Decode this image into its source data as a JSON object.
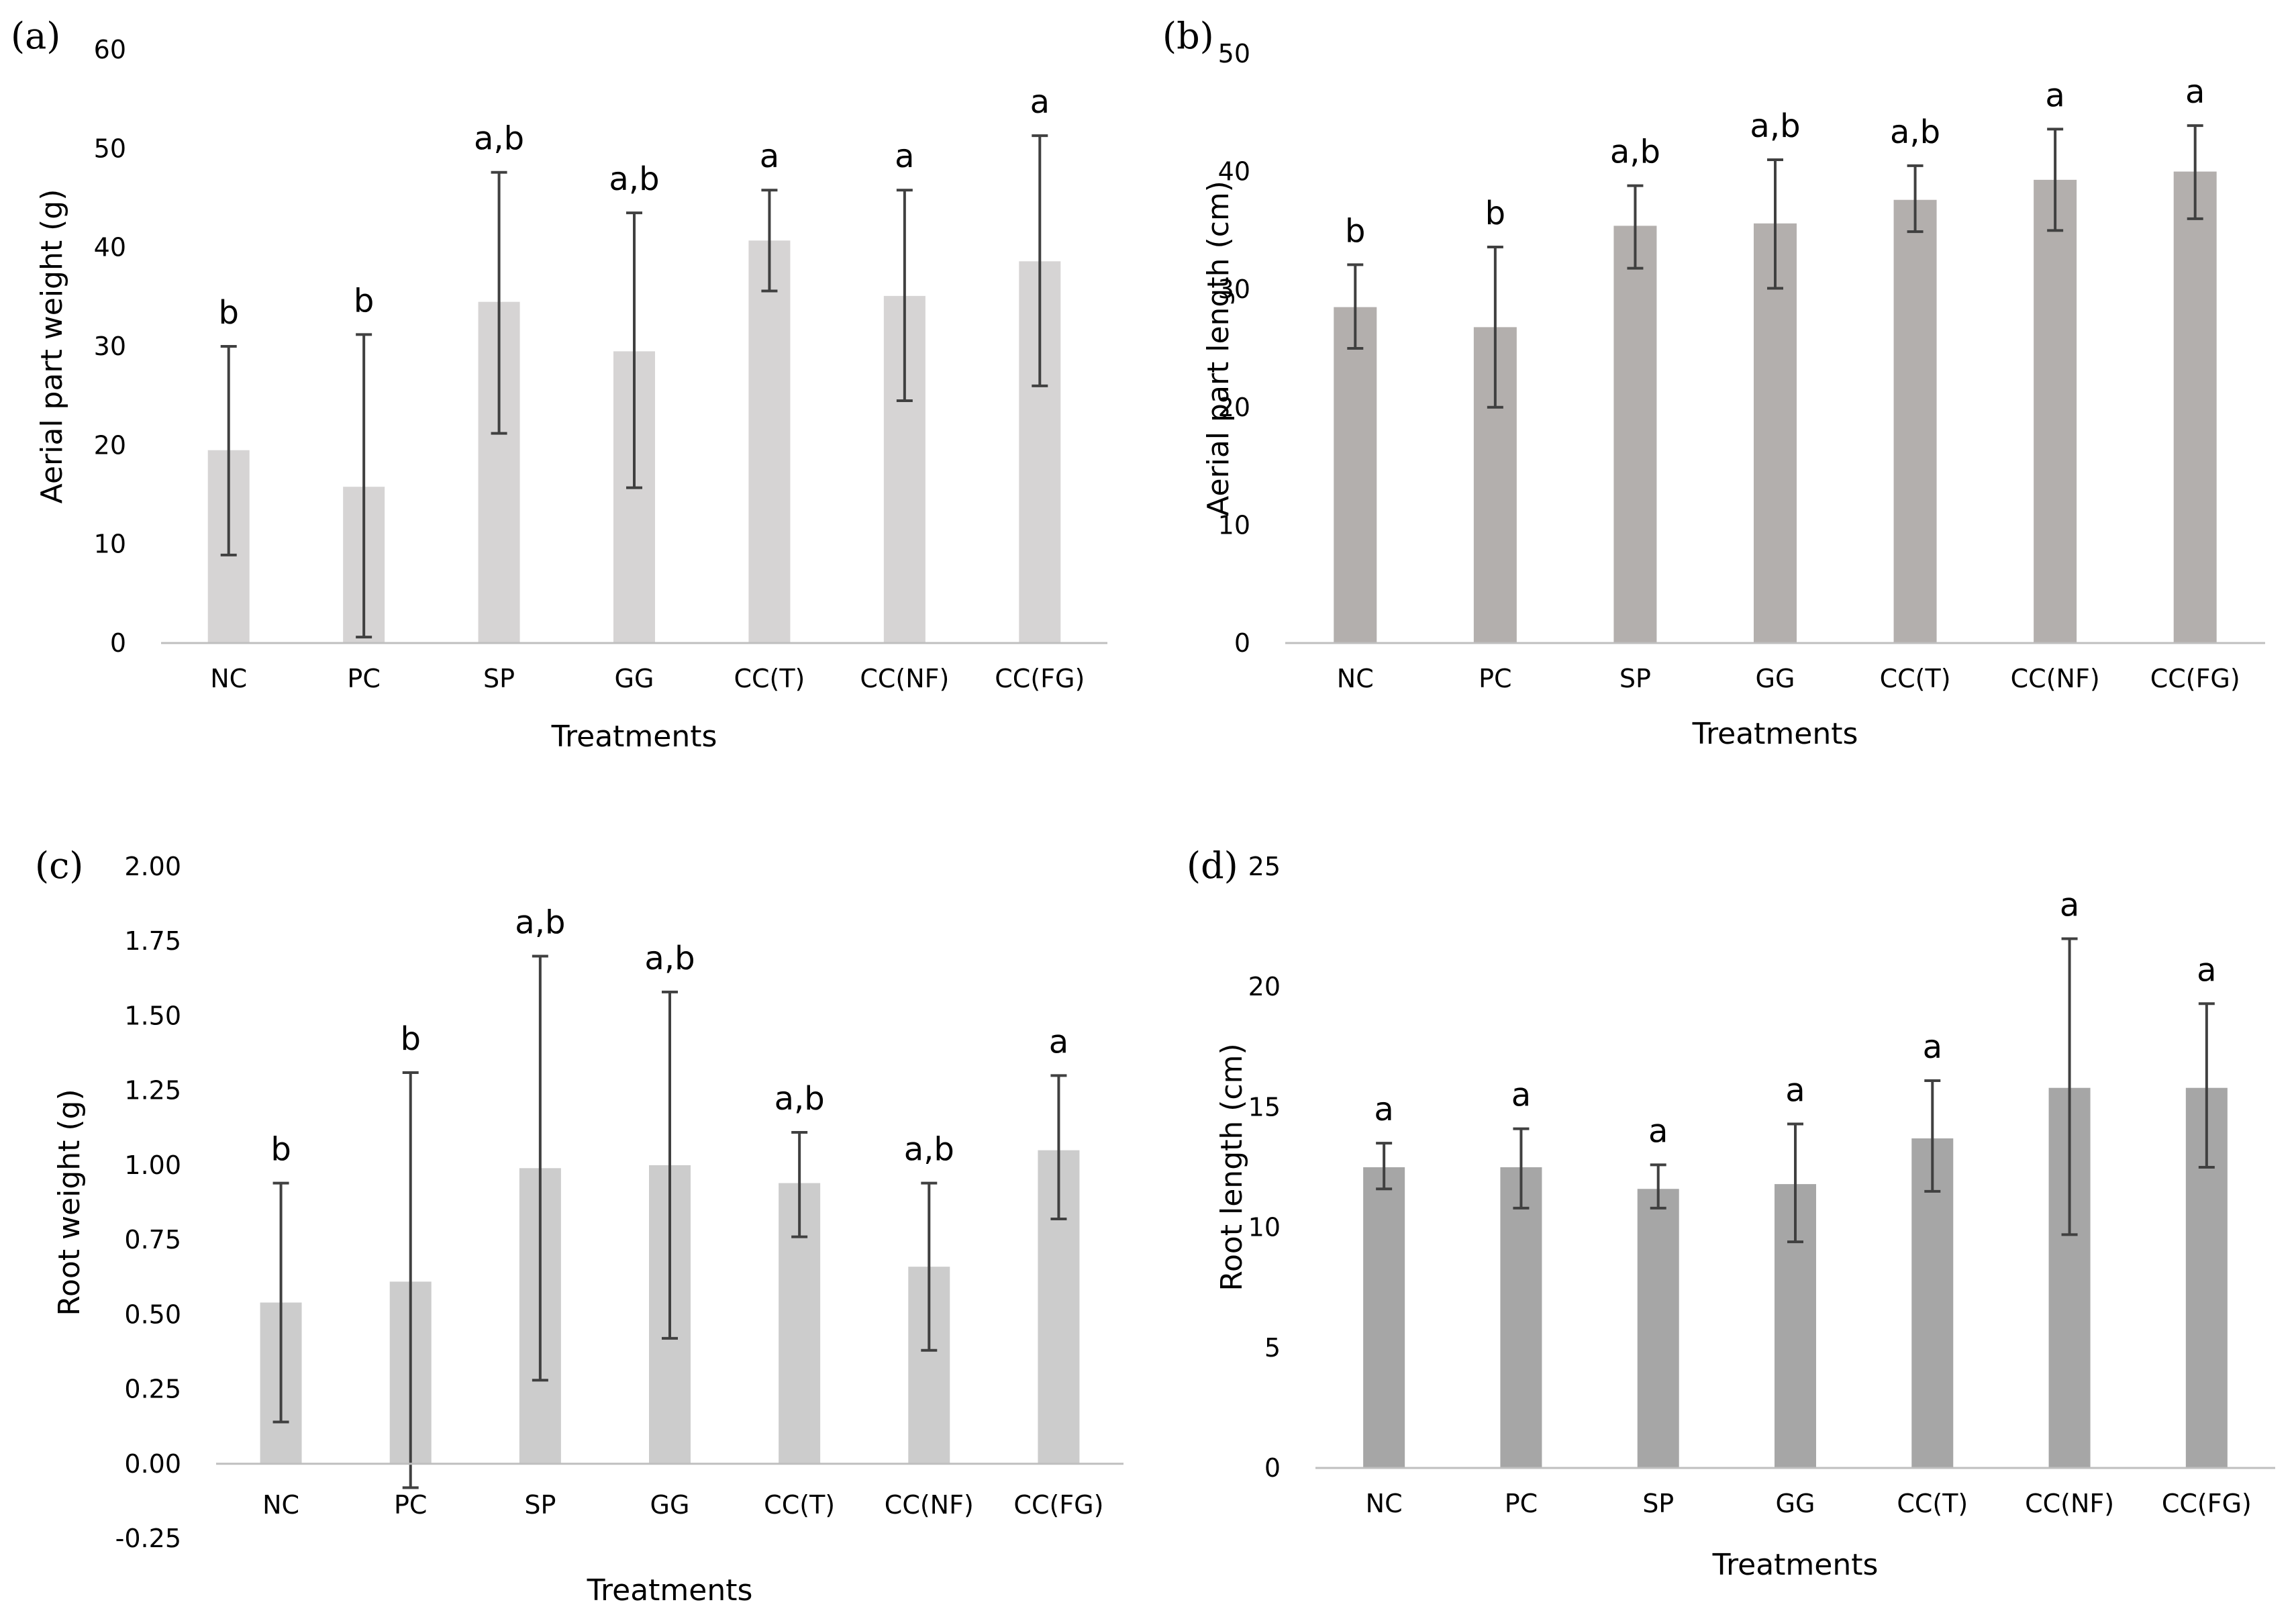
{
  "chart_data": [
    {
      "panel": "(a)",
      "type": "bar",
      "xlabel": "Treatments",
      "ylabel": "Aerial part weight (g)",
      "ylim": [
        0,
        60
      ],
      "yticks": [
        0,
        10,
        20,
        30,
        40,
        50,
        60
      ],
      "ytick_labels": [
        "0",
        "10",
        "20",
        "30",
        "40",
        "50",
        "60"
      ],
      "categories": [
        "NC",
        "PC",
        "SP",
        "GG",
        "CC(T)",
        "CC(NF)",
        "CC(FG)"
      ],
      "values": [
        19.5,
        15.8,
        34.5,
        29.5,
        40.7,
        35.1,
        38.6
      ],
      "error_low": [
        8.9,
        0.6,
        21.2,
        15.7,
        35.6,
        24.5,
        26.0
      ],
      "error_high": [
        30.0,
        31.2,
        47.6,
        43.5,
        45.8,
        45.8,
        51.3
      ],
      "significance": [
        "b",
        "b",
        "a,b",
        "a,b",
        "a",
        "a",
        "a"
      ],
      "bar_color": "#d6d4d4",
      "grid": false
    },
    {
      "panel": "(b)",
      "type": "bar",
      "xlabel": "Treatments",
      "ylabel": "Aerial part length (cm)",
      "ylim": [
        0,
        50
      ],
      "yticks": [
        0,
        10,
        20,
        30,
        40,
        50
      ],
      "ytick_labels": [
        "0",
        "10",
        "20",
        "30",
        "40",
        "50"
      ],
      "categories": [
        "NC",
        "PC",
        "SP",
        "GG",
        "CC(T)",
        "CC(NF)",
        "CC(FG)"
      ],
      "values": [
        28.5,
        26.8,
        35.4,
        35.6,
        37.6,
        39.3,
        40.0
      ],
      "error_low": [
        25.0,
        20.0,
        31.8,
        30.1,
        34.9,
        35.0,
        36.0
      ],
      "error_high": [
        32.1,
        33.6,
        38.8,
        41.0,
        40.5,
        43.6,
        43.9
      ],
      "significance": [
        "b",
        "b",
        "a,b",
        "a,b",
        "a,b",
        "a",
        "a"
      ],
      "bar_color": "#b3afad",
      "grid": false
    },
    {
      "panel": "(c)",
      "type": "bar",
      "xlabel": "Treatments",
      "ylabel": "Root weight (g)",
      "ylim": [
        -0.25,
        2.0
      ],
      "yticks": [
        -0.25,
        0.0,
        0.25,
        0.5,
        0.75,
        1.0,
        1.25,
        1.5,
        1.75,
        2.0
      ],
      "ytick_labels": [
        "-0.25",
        "0.00",
        "0.25",
        "0.50",
        "0.75",
        "1.00",
        "1.25",
        "1.50",
        "1.75",
        "2.00"
      ],
      "categories": [
        "NC",
        "PC",
        "SP",
        "GG",
        "CC(T)",
        "CC(NF)",
        "CC(FG)"
      ],
      "values": [
        0.54,
        0.61,
        0.99,
        1.0,
        0.94,
        0.66,
        1.05
      ],
      "error_low": [
        0.14,
        -0.08,
        0.28,
        0.42,
        0.76,
        0.38,
        0.82
      ],
      "error_high": [
        0.94,
        1.31,
        1.7,
        1.58,
        1.11,
        0.94,
        1.3
      ],
      "significance": [
        "b",
        "b",
        "a,b",
        "a,b",
        "a,b",
        "a,b",
        "a"
      ],
      "bar_color": "#cccccc",
      "grid": false
    },
    {
      "panel": "(d)",
      "type": "bar",
      "xlabel": "Treatments",
      "ylabel": "Root length (cm)",
      "ylim": [
        0,
        25
      ],
      "yticks": [
        0,
        5,
        10,
        15,
        20,
        25
      ],
      "ytick_labels": [
        "0",
        "5",
        "10",
        "15",
        "20",
        "25"
      ],
      "categories": [
        "NC",
        "PC",
        "SP",
        "GG",
        "CC(T)",
        "CC(NF)",
        "CC(FG)"
      ],
      "values": [
        12.5,
        12.5,
        11.6,
        11.8,
        13.7,
        15.8,
        15.8
      ],
      "error_low": [
        11.6,
        10.8,
        10.8,
        9.4,
        11.5,
        9.7,
        12.5
      ],
      "error_high": [
        13.5,
        14.1,
        12.6,
        14.3,
        16.1,
        22.0,
        19.3
      ],
      "significance": [
        "a",
        "a",
        "a",
        "a",
        "a",
        "a",
        "a"
      ],
      "bar_color": "#a6a6a6",
      "grid": false
    }
  ]
}
